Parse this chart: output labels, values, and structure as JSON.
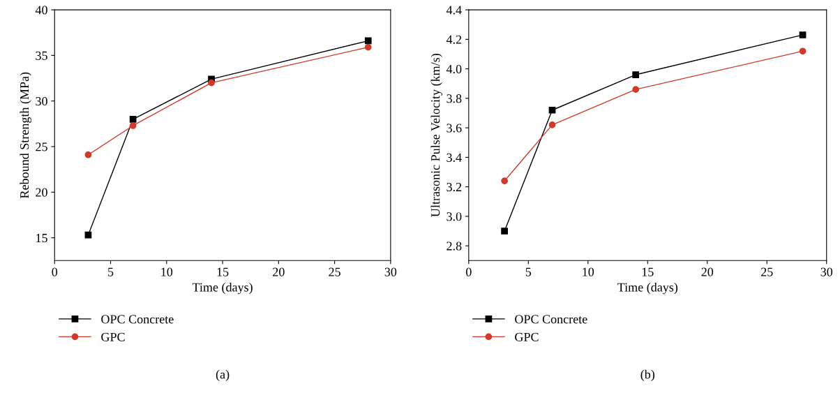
{
  "chart_data": [
    {
      "type": "line",
      "xlabel": "Time (days)",
      "ylabel": "Rebound Strength (MPa)",
      "x": [
        3,
        7,
        14,
        28
      ],
      "series": [
        {
          "name": "OPC Concrete",
          "color": "#000000",
          "marker": "square",
          "values": [
            15.3,
            28.0,
            32.4,
            36.6
          ]
        },
        {
          "name": "GPC",
          "color": "#d03a2a",
          "marker": "circle",
          "values": [
            24.1,
            27.3,
            32.0,
            35.9
          ]
        }
      ],
      "xlim": [
        0,
        30
      ],
      "xticks": [
        0,
        5,
        10,
        15,
        20,
        25,
        30
      ],
      "ylim": [
        12.5,
        40
      ],
      "yticks": [
        15,
        20,
        25,
        30,
        35,
        40
      ],
      "grid": false,
      "legend": "bottom",
      "line_style": "solid",
      "annotations": [
        "(a)"
      ]
    },
    {
      "type": "line",
      "xlabel": "Time (days)",
      "ylabel": "Ultrasonic Pulse Velocity (km/s)",
      "x": [
        3,
        7,
        14,
        28
      ],
      "series": [
        {
          "name": "OPC Concrete",
          "color": "#000000",
          "marker": "square",
          "values": [
            2.9,
            3.72,
            3.96,
            4.23
          ]
        },
        {
          "name": "GPC",
          "color": "#d03a2a",
          "marker": "circle",
          "values": [
            3.24,
            3.62,
            3.86,
            4.12
          ]
        }
      ],
      "xlim": [
        0,
        30
      ],
      "xticks": [
        0,
        5,
        10,
        15,
        20,
        25,
        30
      ],
      "ylim": [
        2.7,
        4.4
      ],
      "yticks": [
        2.8,
        {
          "value": 3,
          "label": "3.0"
        },
        3.2,
        3.4,
        3.6,
        3.8,
        {
          "value": 4,
          "label": "4.0"
        },
        4.2,
        4.4
      ],
      "grid": false,
      "legend": "bottom",
      "line_style": "solid",
      "annotations": [
        "(b)"
      ]
    }
  ]
}
